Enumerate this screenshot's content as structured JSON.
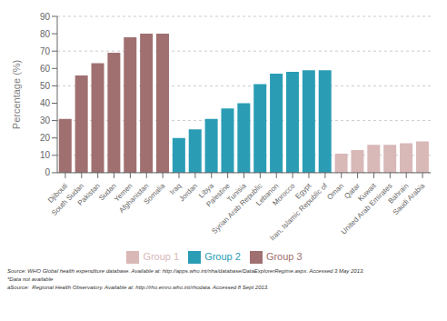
{
  "chart_data": {
    "type": "bar",
    "ylabel": "Percentage (%)",
    "categories": [
      "Djibouti",
      "South Sudan",
      "Pakistan",
      "Sudan",
      "Yemen",
      "Afghanistan",
      "Somalia",
      "Iraq",
      "Jordan",
      "Libya",
      "Palestine",
      "Tunisia",
      "Syrian Arab Republic",
      "Lebanon",
      "Morocco",
      "Egypt",
      "Iran, Islamic Republic of",
      "Oman",
      "Qatar",
      "Kuwait",
      "United Arab Emirates",
      "Bahrain",
      "Saudi Arabia"
    ],
    "series": [
      {
        "name": "Group 3",
        "color": "#a07070",
        "values": [
          31,
          56,
          63,
          69,
          78,
          80,
          80,
          null,
          null,
          null,
          null,
          null,
          null,
          null,
          null,
          null,
          null,
          null,
          null,
          null,
          null,
          null,
          null
        ]
      },
      {
        "name": "Group 2",
        "color": "#2a9db5",
        "values": [
          null,
          null,
          null,
          null,
          null,
          null,
          null,
          20,
          25,
          31,
          37,
          40,
          51,
          57,
          58,
          59,
          59,
          null,
          null,
          null,
          null,
          null,
          null
        ]
      },
      {
        "name": "Group 1",
        "color": "#d9b8b8",
        "values": [
          null,
          null,
          null,
          null,
          null,
          null,
          null,
          null,
          null,
          null,
          null,
          null,
          null,
          null,
          null,
          null,
          null,
          11,
          13,
          16,
          16,
          17,
          18
        ]
      }
    ],
    "stacked": true,
    "ylim": [
      0,
      90
    ],
    "yticks": [
      0,
      10,
      20,
      30,
      40,
      50,
      60,
      70,
      80,
      90
    ],
    "grid": true,
    "annotations": [
      "Source: WHO Global health expenditure database. Available at: http://apps.who.int/nha/database/DataExplorerRegime.aspx. Accessed 3 May 2013.",
      "*Data not available",
      "aSource:  Regional Health Observatory. Available at: http://rho.emro.who.int/rhodata. Accessed 8 Sept 2013."
    ]
  }
}
